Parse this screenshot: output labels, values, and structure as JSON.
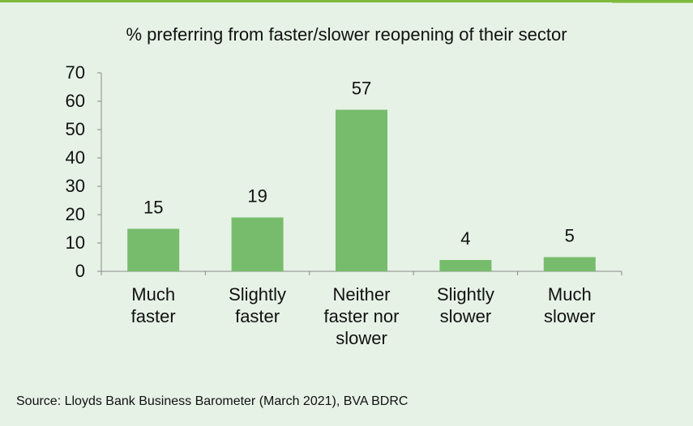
{
  "chart_data": {
    "type": "bar",
    "title": "% preferring from faster/slower reopening of their sector",
    "categories": [
      [
        "Much",
        "faster"
      ],
      [
        "Slightly",
        "faster"
      ],
      [
        "Neither",
        "faster nor",
        "slower"
      ],
      [
        "Slightly",
        "slower"
      ],
      [
        "Much",
        "slower"
      ]
    ],
    "values": [
      15,
      19,
      57,
      4,
      5
    ],
    "data_labels": [
      "15",
      "19",
      "57",
      "4",
      "5"
    ],
    "ylim": [
      0,
      70
    ],
    "yticks": [
      0,
      10,
      20,
      30,
      40,
      50,
      60,
      70
    ],
    "grid": false,
    "legend": "none",
    "bar_color": "#77bc6c"
  },
  "source": "Source: Lloyds Bank Business Barometer (March 2021), BVA BDRC"
}
